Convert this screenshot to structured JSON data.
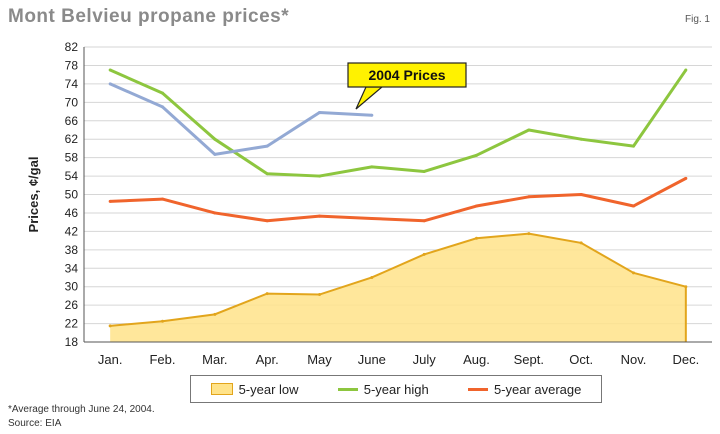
{
  "title": "Mont Belvieu propane prices*",
  "fig_label": "Fig. 1",
  "footnote": "*Average through June 24, 2004.",
  "source": "Source: EIA",
  "chart_data": {
    "type": "line",
    "title": "Mont Belvieu propane prices*",
    "ylabel": "Prices, ¢/gal",
    "xlabel": "",
    "ylim": [
      18,
      82
    ],
    "yticks": [
      18,
      22,
      26,
      30,
      34,
      38,
      42,
      46,
      50,
      54,
      58,
      62,
      66,
      70,
      74,
      78,
      82
    ],
    "categories": [
      "Jan.",
      "Feb.",
      "Mar.",
      "Apr.",
      "May",
      "June",
      "July",
      "Aug.",
      "Sept.",
      "Oct.",
      "Nov.",
      "Dec."
    ],
    "grid": "horizontal",
    "series": [
      {
        "name": "5-year low",
        "kind": "area",
        "color": "#ffe38a",
        "stroke": "#e2a51c",
        "values": [
          21.5,
          22.5,
          24,
          28.5,
          28.3,
          32,
          37,
          40.5,
          41.5,
          39.5,
          33,
          30
        ]
      },
      {
        "name": "5-year high",
        "kind": "line",
        "color": "#8dc63f",
        "values": [
          77,
          72,
          62,
          54.5,
          54,
          56,
          55,
          58.5,
          64,
          62,
          60.5,
          77
        ]
      },
      {
        "name": "5-year average",
        "kind": "line",
        "color": "#f0642c",
        "values": [
          48.5,
          49,
          46,
          44.3,
          45.3,
          44.8,
          44.3,
          47.5,
          49.5,
          50,
          47.5,
          53.5
        ]
      },
      {
        "name": "2004 Prices",
        "kind": "line",
        "color": "#93a9d4",
        "values": [
          74,
          69,
          58.7,
          60.5,
          67.8,
          67.2,
          null,
          null,
          null,
          null,
          null,
          null
        ]
      }
    ],
    "annotation": "2004 Prices",
    "legend": [
      "5-year low",
      "5-year high",
      "5-year average"
    ]
  }
}
